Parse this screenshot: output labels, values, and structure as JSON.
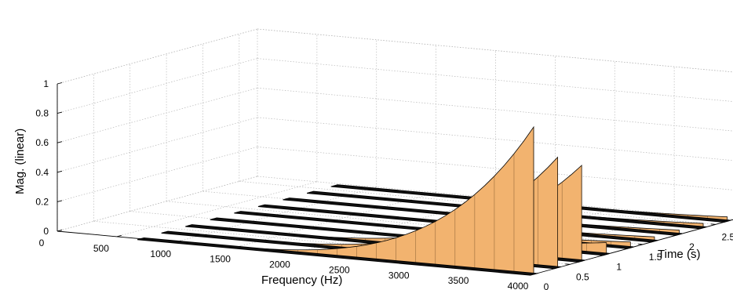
{
  "chart_data": {
    "type": "surface",
    "xlabel": "Frequency (Hz)",
    "ylabel": "Time (s)",
    "zlabel": "Mag. (linear)",
    "xlim": [
      0,
      4000
    ],
    "ylim": [
      0,
      2.75
    ],
    "zlim": [
      0,
      1
    ],
    "xticks": [
      "0",
      "500",
      "1000",
      "1500",
      "2000",
      "2500",
      "3000",
      "3500",
      "4000"
    ],
    "yticks": [
      "0",
      "0.5",
      "1",
      "1.5",
      "2",
      "2.5"
    ],
    "zticks": [
      "0",
      "0.2",
      "0.4",
      "0.6",
      "0.8",
      "1"
    ],
    "grid": true,
    "surface_color": "#f2b36f",
    "edge_color": "#000000",
    "series": [
      {
        "time": 0.0,
        "peak_frequency": 4000,
        "peak_magnitude": 1.0
      },
      {
        "time": 0.33,
        "peak_frequency": 4000,
        "peak_magnitude": 0.75
      },
      {
        "time": 0.66,
        "peak_frequency": 4000,
        "peak_magnitude": 0.65
      },
      {
        "time": 1.0,
        "peak_frequency": 4000,
        "peak_magnitude": 0.08
      },
      {
        "time": 1.33,
        "peak_frequency": 4000,
        "peak_magnitude": 0.04
      },
      {
        "time": 1.66,
        "peak_frequency": 4000,
        "peak_magnitude": 0.03
      },
      {
        "time": 2.0,
        "peak_frequency": 4000,
        "peak_magnitude": 0.03
      },
      {
        "time": 2.33,
        "peak_frequency": 4000,
        "peak_magnitude": 0.03
      },
      {
        "time": 2.66,
        "peak_frequency": 4000,
        "peak_magnitude": 0.03
      }
    ]
  }
}
